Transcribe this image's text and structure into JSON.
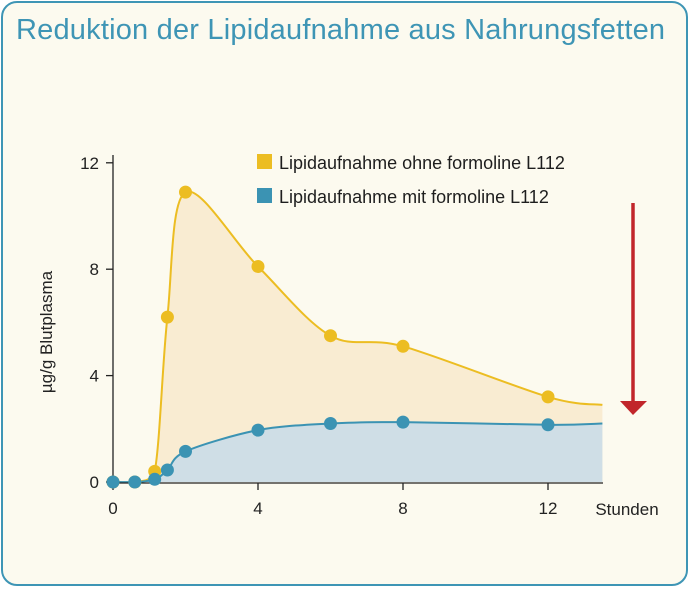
{
  "title": "Reduktion der Lipidaufnahme aus Nahrungsfetten",
  "colors": {
    "frame": "#3e95b5",
    "background": "#fcfaef",
    "series_ohne": "#ecbd22",
    "series_ohne_fill": "#f9ecd2",
    "series_mit": "#3b93b3",
    "series_mit_fill": "#cfdee6",
    "arrow": "#c1262b"
  },
  "chart_data": {
    "type": "area",
    "xlabel": "Stunden",
    "ylabel": "µg/g Blutplasma",
    "xlim": [
      0,
      13.5
    ],
    "ylim": [
      0,
      12
    ],
    "x_ticks": [
      "0",
      "4",
      "8",
      "12"
    ],
    "y_ticks": [
      "0",
      "4",
      "8",
      "12"
    ],
    "legend_position": "top-right",
    "series": [
      {
        "name": "Lipidaufnahme ohne formoline L112",
        "color": "#ecbd22",
        "points": [
          [
            0,
            0
          ],
          [
            0.6,
            0
          ],
          [
            1.15,
            0.4
          ],
          [
            1.5,
            6.2
          ],
          [
            2.0,
            10.9
          ],
          [
            4.0,
            8.1
          ],
          [
            6.0,
            5.5
          ],
          [
            8.0,
            5.1
          ],
          [
            12.0,
            3.2
          ]
        ],
        "curve_end": [
          13.5,
          2.9
        ]
      },
      {
        "name": "Lipidaufnahme mit formoline L112",
        "color": "#3b93b3",
        "points": [
          [
            0,
            0
          ],
          [
            0.6,
            0
          ],
          [
            1.15,
            0.1
          ],
          [
            1.5,
            0.45
          ],
          [
            2.0,
            1.15
          ],
          [
            4.0,
            1.95
          ],
          [
            6.0,
            2.2
          ],
          [
            8.0,
            2.25
          ],
          [
            12.0,
            2.15
          ]
        ],
        "curve_end": [
          13.5,
          2.2
        ]
      }
    ],
    "annotation": "red-down-arrow"
  }
}
